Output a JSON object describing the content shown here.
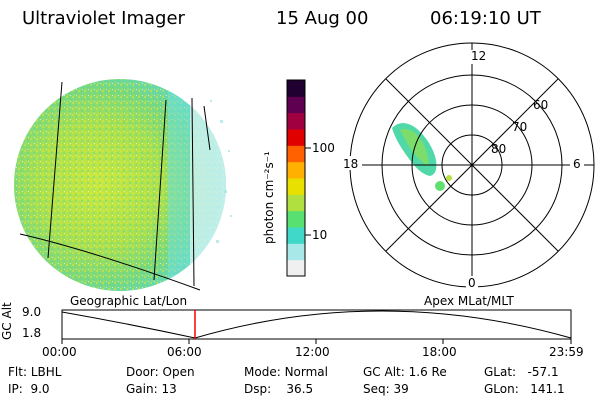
{
  "header": {
    "instrument": "Ultraviolet Imager",
    "date": "15 Aug 00",
    "time": "06:19:10 UT"
  },
  "colorbar": {
    "unit_label": "photon cm⁻²s⁻¹",
    "ticks": [
      "100",
      "10"
    ],
    "colors": [
      "#f0f0f0",
      "#a8e8e8",
      "#40d8c8",
      "#58e070",
      "#b0e040",
      "#e8e000",
      "#ffb000",
      "#ff6000",
      "#e00000",
      "#a00040",
      "#600050",
      "#200030"
    ]
  },
  "polar": {
    "mlt_labels": [
      "12",
      "18",
      "6",
      "0"
    ],
    "lat_labels": [
      "60",
      "70",
      "80"
    ]
  },
  "orbit": {
    "left_caption": "Geographic Lat/Lon",
    "right_caption": "Apex MLat/MLT",
    "y_axis_label": "GC Alt",
    "y_ticks": [
      "9.0",
      "1.8"
    ],
    "x_ticks": [
      "00:00",
      "06:00",
      "12:00",
      "18:00",
      "23:59"
    ],
    "marker_color": "#ff0000"
  },
  "footer": {
    "flt": {
      "label": "Flt:",
      "value": "LBHL"
    },
    "ip": {
      "label": "IP:",
      "value": "9.0"
    },
    "door": {
      "label": "Door:",
      "value": "Open"
    },
    "gain": {
      "label": "Gain:",
      "value": "13"
    },
    "mode": {
      "label": "Mode:",
      "value": "Normal"
    },
    "dsp": {
      "label": "Dsp:",
      "value": "36.5"
    },
    "gcalt": {
      "label": "GC Alt:",
      "value": "1.6 Re"
    },
    "seq": {
      "label": "Seq:",
      "value": "39"
    },
    "glat": {
      "label": "GLat:",
      "value": "-57.1"
    },
    "glon": {
      "label": "GLon:",
      "value": "141.1"
    }
  }
}
